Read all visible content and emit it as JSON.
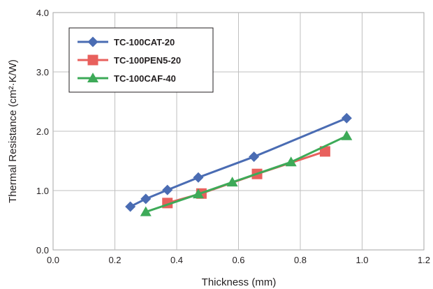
{
  "chart_data": {
    "type": "line",
    "title": "",
    "xlabel": "Thickness (mm)",
    "ylabel": "Thermal Resistance (cm²·K/W)",
    "xlim": [
      0.0,
      1.2
    ],
    "ylim": [
      0.0,
      4.0
    ],
    "x_ticks": [
      0.0,
      0.2,
      0.4,
      0.6,
      0.8,
      1.0,
      1.2
    ],
    "x_tick_labels": [
      "0.0",
      "0.2",
      "0.4",
      "0.6",
      "0.8",
      "1.0",
      "1.2"
    ],
    "y_ticks": [
      0.0,
      1.0,
      2.0,
      3.0,
      4.0
    ],
    "y_tick_labels": [
      "0.0",
      "1.0",
      "2.0",
      "3.0",
      "4.0"
    ],
    "grid": true,
    "legend_position": "top-left",
    "series": [
      {
        "name": "TC-100CAT-20",
        "color": "#4a6cb3",
        "marker": "diamond",
        "x": [
          0.25,
          0.3,
          0.37,
          0.47,
          0.65,
          0.95
        ],
        "y": [
          0.73,
          0.86,
          1.01,
          1.22,
          1.57,
          2.22
        ]
      },
      {
        "name": "TC-100PEN5-20",
        "color": "#e8605d",
        "marker": "square",
        "x": [
          0.37,
          0.48,
          0.66,
          0.88
        ],
        "y": [
          0.79,
          0.95,
          1.28,
          1.66
        ]
      },
      {
        "name": "TC-100CAF-40",
        "color": "#3daa58",
        "marker": "triangle",
        "x": [
          0.3,
          0.47,
          0.58,
          0.77,
          0.95
        ],
        "y": [
          0.64,
          0.94,
          1.14,
          1.48,
          1.92
        ]
      }
    ]
  }
}
